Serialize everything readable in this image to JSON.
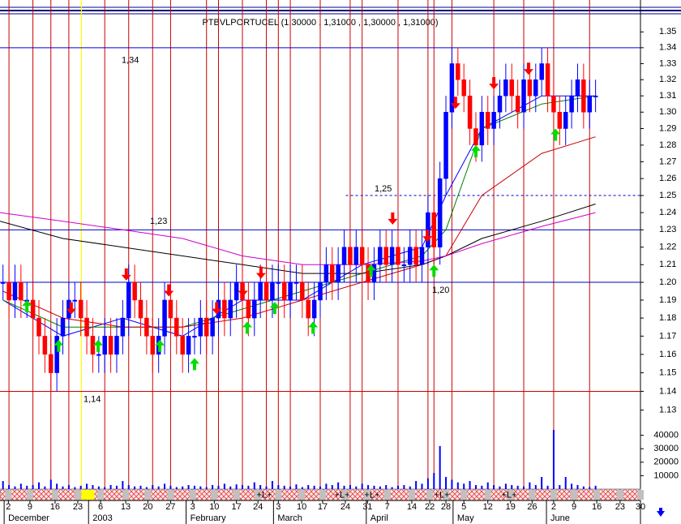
{
  "chart_data": {
    "type": "candlestick",
    "title": "PTBVLPORTUCEL (1,30000 , 1,31000 , 1,30000 , 1,31000)",
    "log": true,
    "xlim": [
      -0.5,
      106.5
    ],
    "xticks": [
      {
        "value": 0.9,
        "label": "2"
      },
      {
        "value": 4.5,
        "label": "9"
      },
      {
        "value": 8.7,
        "label": "16"
      },
      {
        "value": 12.5,
        "label": "23"
      },
      {
        "value": 16.3,
        "label": "6"
      },
      {
        "value": 20.5,
        "label": "13"
      },
      {
        "value": 24.2,
        "label": "20"
      },
      {
        "value": 28,
        "label": "27"
      },
      {
        "value": 31.7,
        "label": "3"
      },
      {
        "value": 35.3,
        "label": "10"
      },
      {
        "value": 39,
        "label": "17"
      },
      {
        "value": 42.6,
        "label": "24"
      },
      {
        "value": 46,
        "label": "3"
      },
      {
        "value": 49.9,
        "label": "10"
      },
      {
        "value": 53.4,
        "label": "17"
      },
      {
        "value": 57.2,
        "label": "24"
      },
      {
        "value": 60.9,
        "label": "31"
      },
      {
        "value": 64.2,
        "label": "7"
      },
      {
        "value": 68.3,
        "label": "14"
      },
      {
        "value": 71.3,
        "label": "22"
      },
      {
        "value": 74,
        "label": "28"
      },
      {
        "value": 77,
        "label": "5"
      },
      {
        "value": 81,
        "label": "12"
      },
      {
        "value": 84.8,
        "label": "19"
      },
      {
        "value": 88.4,
        "label": "26"
      },
      {
        "value": 92,
        "label": "2"
      },
      {
        "value": 95.4,
        "label": "9"
      },
      {
        "value": 99.2,
        "label": "16"
      },
      {
        "value": 103.1,
        "label": "23"
      },
      {
        "value": 106.5,
        "label": "30"
      }
    ],
    "x_month_labels": [
      {
        "value": 0.6,
        "label": "December"
      },
      {
        "value": 14.7,
        "label": "2003"
      },
      {
        "value": 31,
        "label": "February"
      },
      {
        "value": 45.6,
        "label": "March"
      },
      {
        "value": 61.1,
        "label": "April"
      },
      {
        "value": 75.6,
        "label": "May"
      },
      {
        "value": 91.2,
        "label": "June"
      }
    ],
    "ylim": [
      1.09,
      1.36
    ],
    "yticks": [
      {
        "value": 1.13,
        "label": "1.13"
      },
      {
        "value": 1.14,
        "label": "1.14"
      },
      {
        "value": 1.15,
        "label": "1.15"
      },
      {
        "value": 1.16,
        "label": "1.16"
      },
      {
        "value": 1.17,
        "label": "1.17"
      },
      {
        "value": 1.18,
        "label": "1.18"
      },
      {
        "value": 1.19,
        "label": "1.19"
      },
      {
        "value": 1.2,
        "label": "1.20"
      },
      {
        "value": 1.21,
        "label": "1.21"
      },
      {
        "value": 1.22,
        "label": "1.22"
      },
      {
        "value": 1.23,
        "label": "1.23"
      },
      {
        "value": 1.24,
        "label": "1.24"
      },
      {
        "value": 1.25,
        "label": "1.25"
      },
      {
        "value": 1.26,
        "label": "1.26"
      },
      {
        "value": 1.27,
        "label": "1.27"
      },
      {
        "value": 1.28,
        "label": "1.28"
      },
      {
        "value": 1.29,
        "label": "1.29"
      },
      {
        "value": 1.3,
        "label": "1.30"
      },
      {
        "value": 1.31,
        "label": "1.31"
      },
      {
        "value": 1.32,
        "label": "1.32"
      },
      {
        "value": 1.33,
        "label": "1.33"
      },
      {
        "value": 1.34,
        "label": "1.34"
      },
      {
        "value": 1.35,
        "label": "1.35"
      }
    ],
    "up_color": "#0000ff",
    "down_color": "#ff0000",
    "open": [
      1.2,
      1.2,
      1.19,
      1.2,
      1.19,
      1.19,
      1.18,
      1.17,
      1.16,
      1.15,
      1.17,
      1.18,
      1.19,
      1.19,
      1.18,
      1.17,
      1.16,
      1.16,
      1.17,
      1.16,
      1.17,
      1.18,
      1.2,
      1.19,
      1.18,
      1.17,
      1.16,
      1.17,
      1.19,
      1.18,
      1.17,
      1.16,
      1.17,
      1.17,
      1.18,
      1.17,
      1.18,
      1.19,
      1.18,
      1.19,
      1.2,
      1.19,
      1.18,
      1.19,
      1.2,
      1.19,
      1.2,
      1.2,
      1.19,
      1.2,
      1.2,
      1.19,
      1.18,
      1.19,
      1.2,
      1.21,
      1.2,
      1.21,
      1.22,
      1.21,
      1.22,
      1.21,
      1.2,
      1.21,
      1.22,
      1.21,
      1.22,
      1.21,
      1.21,
      1.22,
      1.21,
      1.22,
      1.24,
      1.22,
      1.26,
      1.3,
      1.33,
      1.32,
      1.31,
      1.29,
      1.28,
      1.3,
      1.29,
      1.3,
      1.31,
      1.32,
      1.31,
      1.3,
      1.32,
      1.31,
      1.32,
      1.33,
      1.31,
      1.3,
      1.29,
      1.3,
      1.31,
      1.32,
      1.3,
      1.31
    ],
    "high": [
      1.21,
      1.21,
      1.21,
      1.21,
      1.2,
      1.2,
      1.19,
      1.18,
      1.17,
      1.18,
      1.19,
      1.2,
      1.2,
      1.2,
      1.19,
      1.18,
      1.17,
      1.18,
      1.18,
      1.18,
      1.19,
      1.21,
      1.21,
      1.2,
      1.19,
      1.18,
      1.18,
      1.2,
      1.2,
      1.19,
      1.18,
      1.18,
      1.18,
      1.19,
      1.19,
      1.19,
      1.2,
      1.2,
      1.2,
      1.21,
      1.21,
      1.2,
      1.2,
      1.21,
      1.21,
      1.21,
      1.21,
      1.21,
      1.21,
      1.21,
      1.21,
      1.2,
      1.2,
      1.21,
      1.22,
      1.22,
      1.22,
      1.23,
      1.23,
      1.23,
      1.23,
      1.22,
      1.22,
      1.23,
      1.23,
      1.23,
      1.23,
      1.22,
      1.23,
      1.23,
      1.23,
      1.25,
      1.25,
      1.27,
      1.31,
      1.34,
      1.34,
      1.33,
      1.32,
      1.3,
      1.31,
      1.31,
      1.31,
      1.32,
      1.33,
      1.33,
      1.32,
      1.33,
      1.33,
      1.33,
      1.34,
      1.34,
      1.32,
      1.31,
      1.31,
      1.32,
      1.33,
      1.33,
      1.32,
      1.32
    ],
    "low": [
      1.19,
      1.18,
      1.18,
      1.18,
      1.18,
      1.17,
      1.16,
      1.15,
      1.14,
      1.14,
      1.16,
      1.17,
      1.18,
      1.17,
      1.16,
      1.15,
      1.15,
      1.15,
      1.15,
      1.15,
      1.16,
      1.17,
      1.18,
      1.17,
      1.16,
      1.15,
      1.15,
      1.16,
      1.17,
      1.16,
      1.15,
      1.15,
      1.16,
      1.16,
      1.16,
      1.16,
      1.17,
      1.17,
      1.17,
      1.18,
      1.18,
      1.17,
      1.17,
      1.18,
      1.18,
      1.18,
      1.19,
      1.18,
      1.18,
      1.19,
      1.18,
      1.17,
      1.17,
      1.18,
      1.19,
      1.19,
      1.19,
      1.2,
      1.2,
      1.2,
      1.2,
      1.19,
      1.19,
      1.2,
      1.2,
      1.2,
      1.2,
      1.2,
      1.2,
      1.2,
      1.2,
      1.21,
      1.21,
      1.21,
      1.25,
      1.29,
      1.31,
      1.3,
      1.28,
      1.27,
      1.27,
      1.28,
      1.28,
      1.29,
      1.3,
      1.3,
      1.29,
      1.29,
      1.3,
      1.3,
      1.31,
      1.3,
      1.29,
      1.28,
      1.28,
      1.29,
      1.3,
      1.29,
      1.29,
      1.3
    ],
    "close": [
      1.2,
      1.19,
      1.2,
      1.19,
      1.19,
      1.18,
      1.17,
      1.16,
      1.15,
      1.17,
      1.18,
      1.19,
      1.19,
      1.18,
      1.17,
      1.16,
      1.16,
      1.17,
      1.16,
      1.17,
      1.18,
      1.2,
      1.19,
      1.18,
      1.17,
      1.16,
      1.17,
      1.19,
      1.18,
      1.17,
      1.16,
      1.17,
      1.17,
      1.18,
      1.17,
      1.18,
      1.19,
      1.18,
      1.19,
      1.2,
      1.19,
      1.18,
      1.19,
      1.2,
      1.19,
      1.2,
      1.2,
      1.19,
      1.2,
      1.2,
      1.19,
      1.18,
      1.19,
      1.2,
      1.21,
      1.2,
      1.21,
      1.22,
      1.21,
      1.22,
      1.21,
      1.2,
      1.21,
      1.22,
      1.21,
      1.22,
      1.21,
      1.21,
      1.22,
      1.21,
      1.22,
      1.24,
      1.22,
      1.26,
      1.3,
      1.33,
      1.32,
      1.31,
      1.29,
      1.28,
      1.3,
      1.29,
      1.3,
      1.31,
      1.32,
      1.31,
      1.3,
      1.32,
      1.31,
      1.32,
      1.33,
      1.31,
      1.3,
      1.29,
      1.3,
      1.31,
      1.32,
      1.3,
      1.31,
      1.31
    ],
    "volume": {
      "color": "#0000ff",
      "ylim": [
        0,
        50000
      ],
      "yticks": [
        10000,
        20000,
        30000,
        40000
      ],
      "values": [
        6000,
        3000,
        2000,
        4000,
        2500,
        3000,
        5000,
        2000,
        7000,
        4000,
        2000,
        3000,
        1500,
        2500,
        4000,
        3000,
        2000,
        1500,
        3000,
        2500,
        6000,
        3000,
        2000,
        2500,
        1500,
        3000,
        2000,
        4000,
        2500,
        1500,
        2000,
        3000,
        2500,
        2000,
        1500,
        3000,
        2500,
        4000,
        2000,
        3500,
        3000,
        2500,
        5000,
        3000,
        2000,
        6000,
        3000,
        2500,
        2000,
        3500,
        1500,
        3000,
        2500,
        2000,
        4000,
        3000,
        5000,
        2500,
        3000,
        2000,
        4000,
        3000,
        2500,
        2000,
        3000,
        1500,
        2500,
        3000,
        2000,
        6000,
        4000,
        8000,
        12000,
        32000,
        9000,
        7000,
        5000,
        4000,
        6000,
        3000,
        2500,
        5000,
        3000,
        2000,
        4000,
        3000,
        2500,
        2000,
        5000,
        3000,
        9000,
        2500,
        44000,
        3000,
        9000,
        4000,
        3000,
        2000,
        1500,
        2500
      ]
    },
    "lines": [
      {
        "color": "#0000ff",
        "x": [
          0,
          10,
          20,
          30,
          40,
          50,
          60,
          70,
          74,
          80,
          90,
          99
        ],
        "values": [
          1.19,
          1.17,
          1.18,
          1.17,
          1.19,
          1.19,
          1.21,
          1.22,
          1.25,
          1.29,
          1.31,
          1.31
        ]
      },
      {
        "color": "#008000",
        "x": [
          0,
          10,
          20,
          30,
          40,
          50,
          60,
          70,
          74,
          80,
          90,
          99
        ],
        "values": [
          1.19,
          1.175,
          1.175,
          1.175,
          1.185,
          1.195,
          1.205,
          1.215,
          1.23,
          1.29,
          1.305,
          1.31
        ]
      },
      {
        "color": "#cc0000",
        "x": [
          0,
          10,
          20,
          30,
          40,
          50,
          60,
          70,
          74,
          80,
          90,
          99
        ],
        "values": [
          1.195,
          1.18,
          1.175,
          1.175,
          1.18,
          1.19,
          1.2,
          1.21,
          1.215,
          1.25,
          1.275,
          1.285
        ]
      },
      {
        "color": "#000000",
        "x": [
          -0.5,
          10,
          20,
          30,
          40,
          50,
          60,
          70,
          74,
          80,
          90,
          99
        ],
        "values": [
          1.235,
          1.225,
          1.22,
          1.215,
          1.21,
          1.205,
          1.205,
          1.21,
          1.215,
          1.225,
          1.235,
          1.245
        ]
      },
      {
        "color": "#cc00cc",
        "x": [
          -0.5,
          10,
          20,
          30,
          40,
          50,
          60,
          70,
          74,
          80,
          90,
          99
        ],
        "values": [
          1.24,
          1.235,
          1.23,
          1.225,
          1.215,
          1.21,
          1.21,
          1.212,
          1.215,
          1.222,
          1.232,
          1.24
        ]
      }
    ],
    "levels": [
      {
        "value": 1.34,
        "label": "1,34",
        "color": "#0000cc",
        "style": "solid"
      },
      {
        "value": 1.25,
        "label": "1,25",
        "color": "#0000cc",
        "style": "dashed"
      },
      {
        "value": 1.23,
        "label": "1,23",
        "color": "#0000cc",
        "style": "solid"
      },
      {
        "value": 1.2,
        "label": "1,20",
        "color": "#0000cc",
        "style": "solid"
      },
      {
        "value": 1.14,
        "label": "1,14",
        "color": "#cc0000",
        "style": "solid"
      }
    ],
    "signal_lines": {
      "color": "#cc0000",
      "x": [
        1,
        5,
        8,
        11,
        17,
        21,
        25,
        28,
        34,
        36,
        40,
        44,
        46,
        48,
        53,
        58,
        60,
        66,
        71,
        72,
        75,
        82,
        87,
        92,
        98
      ]
    },
    "highlight_line": {
      "color": "#ffff00",
      "x": 13.1
    },
    "sell_signals": {
      "color": "#ff0000",
      "x": [
        11.4,
        20.6,
        27.7,
        35.7,
        40.1,
        43.1,
        65.1,
        70.9,
        75.6,
        82,
        87.8
      ],
      "y": [
        1.182,
        1.201,
        1.192,
        1.182,
        1.192,
        1.202,
        1.233,
        1.223,
        1.302,
        1.314,
        1.323
      ]
    },
    "buy_signals": {
      "color": "#00dd00",
      "x": [
        4,
        9.3,
        15.9,
        26.2,
        32,
        40.8,
        45.4,
        51.8,
        61.5,
        72,
        79,
        92.3
      ],
      "y": [
        1.19,
        1.168,
        1.168,
        1.168,
        1.158,
        1.178,
        1.189,
        1.178,
        1.21,
        1.21,
        1.28,
        1.29
      ]
    },
    "strip_labels": [
      "+L+",
      "+L+",
      "+L+",
      "+L+",
      "+L+"
    ]
  }
}
